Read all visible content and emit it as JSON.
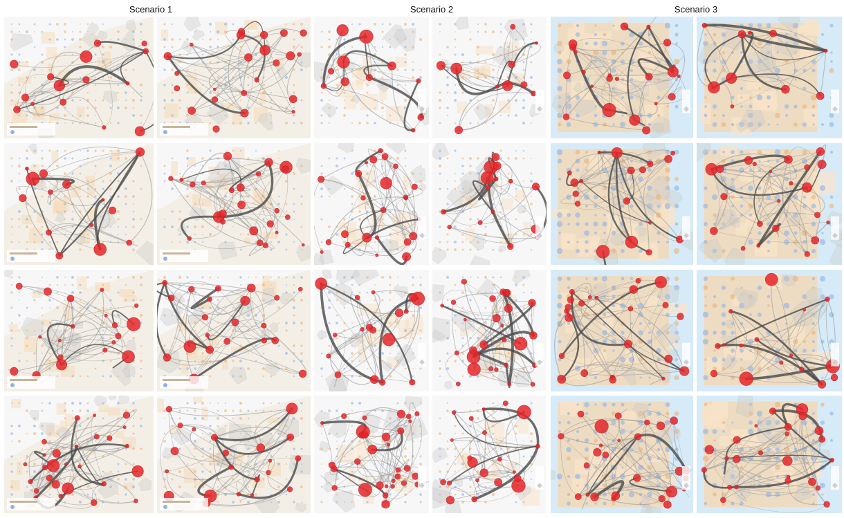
{
  "figure": {
    "scenarios": [
      {
        "label": "Scenario 1",
        "theme": "light"
      },
      {
        "label": "Scenario 2",
        "theme": "grid"
      },
      {
        "label": "Scenario 3",
        "theme": "sea"
      }
    ],
    "rows": 4,
    "panels_per_scenario": 2
  },
  "colors": {
    "node": "#e8272b",
    "node_stroke": "#b81a1d",
    "edge": "#4a4a4a",
    "edge_faint": "#9a9a9a",
    "land_light": "#f4efe6",
    "land_orange": "#f6d7b0",
    "sea": "#d6ebf7",
    "cluster_fill": "#c9c9c9",
    "grid_dot_blue": "#8fb3e6",
    "grid_dot_orange": "#e9b27a"
  }
}
